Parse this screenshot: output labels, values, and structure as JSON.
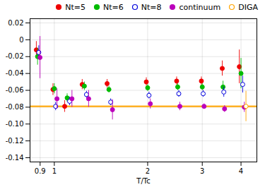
{
  "chart_data": {
    "type": "scatter",
    "x_label": "T/Tc",
    "log": "x",
    "xlim": [
      0.835,
      4.5
    ],
    "xticks": [
      0.9,
      1,
      2,
      3,
      4
    ],
    "ylim": [
      -0.145,
      0.025
    ],
    "yticks": [
      -0.14,
      -0.12,
      {
        "value": -0.1,
        "label": "-0.10"
      },
      -0.08,
      -0.06,
      -0.04,
      -0.02,
      0,
      0.02
    ],
    "grid": true,
    "legend": "upper right",
    "reference_line": {
      "value": -0.079,
      "color": "#FFA500"
    },
    "series": [
      {
        "name": "Nt=5",
        "color": "#ee0000",
        "marker": "circle",
        "x": [
          0.875,
          0.99,
          1.08,
          1.23,
          1.48,
          1.98,
          2.48,
          2.98,
          3.48,
          3.95
        ],
        "values": [
          -0.012,
          -0.059,
          -0.079,
          -0.053,
          -0.052,
          -0.05,
          -0.049,
          -0.049,
          -0.034,
          -0.032
        ],
        "errors": [
          0.01,
          0.007,
          0.007,
          0.006,
          0.005,
          0.005,
          0.005,
          0.005,
          0.009,
          0.02
        ]
      },
      {
        "name": "Nt=6",
        "color": "#00bb00",
        "marker": "circle",
        "x": [
          0.883,
          1.0,
          1.1,
          1.25,
          1.5,
          2.0,
          2.5,
          3.0,
          3.5,
          4.0
        ],
        "values": [
          -0.02,
          -0.058,
          -0.069,
          -0.055,
          -0.059,
          -0.057,
          -0.056,
          -0.056,
          -0.056,
          -0.04
        ],
        "errors": [
          0.01,
          0.006,
          0.005,
          0.005,
          0.004,
          0.004,
          0.004,
          0.004,
          0.007,
          0.018
        ]
      },
      {
        "name": "Nt=8",
        "color": "#0000dd",
        "marker": "open circle",
        "x": [
          0.891,
          1.01,
          1.12,
          1.27,
          1.52,
          2.02,
          2.52,
          3.02,
          3.52,
          4.05
        ],
        "values": [
          -0.015,
          -0.079,
          -0.073,
          -0.065,
          -0.074,
          -0.066,
          -0.064,
          -0.064,
          -0.062,
          -0.053
        ],
        "errors": [
          0.008,
          0.005,
          0.005,
          0.004,
          0.004,
          0.004,
          0.004,
          0.004,
          0.006,
          0.01
        ]
      },
      {
        "name": "continuum",
        "color": "#bb00bb",
        "marker": "circle",
        "x": [
          0.899,
          1.02,
          1.14,
          1.29,
          1.54,
          2.04,
          2.54,
          3.04,
          3.54,
          4.1
        ],
        "values": [
          -0.021,
          -0.07,
          -0.07,
          -0.07,
          -0.083,
          -0.076,
          -0.079,
          -0.079,
          -0.082,
          -0.08
        ],
        "errors": [
          0.025,
          0.012,
          0.01,
          0.01,
          0.012,
          0.006,
          0.005,
          0.003,
          0.004,
          0.006
        ]
      },
      {
        "name": "DIGA",
        "color": "#FFA500",
        "marker": "open circle",
        "x": [
          4.15
        ],
        "values": [
          -0.079
        ],
        "errors": [
          0.018
        ]
      }
    ]
  }
}
